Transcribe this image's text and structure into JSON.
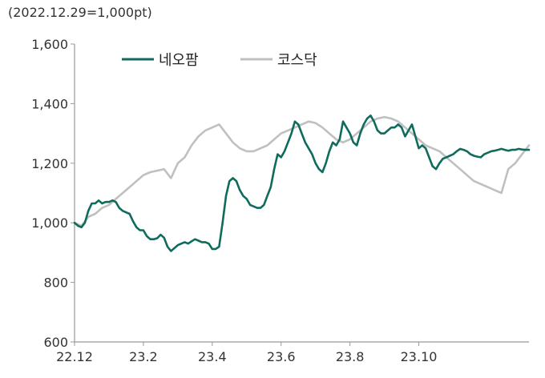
{
  "chart_data": {
    "type": "line",
    "title": "",
    "unit_note": "(2022.12.29=1,000pt)",
    "xlabel": "",
    "ylabel": "",
    "x_ticks": [
      "22.12",
      "23.2",
      "23.4",
      "23.6",
      "23.8",
      "23.10"
    ],
    "ylim": [
      600,
      1600
    ],
    "y_ticks": [
      600,
      800,
      1000,
      1200,
      1400,
      1600
    ],
    "y_tick_labels": [
      "600",
      "800",
      "1,000",
      "1,200",
      "1,400",
      "1,600"
    ],
    "grid": false,
    "legend_position": "top-left",
    "series": [
      {
        "name": "네오팜",
        "color": "#0f6b5c",
        "points": [
          [
            0.0,
            1000
          ],
          [
            0.05,
            990
          ],
          [
            0.1,
            985
          ],
          [
            0.15,
            1000
          ],
          [
            0.2,
            1040
          ],
          [
            0.25,
            1065
          ],
          [
            0.3,
            1065
          ],
          [
            0.35,
            1075
          ],
          [
            0.4,
            1065
          ],
          [
            0.45,
            1070
          ],
          [
            0.5,
            1070
          ],
          [
            0.55,
            1075
          ],
          [
            0.6,
            1070
          ],
          [
            0.65,
            1050
          ],
          [
            0.7,
            1040
          ],
          [
            0.75,
            1035
          ],
          [
            0.8,
            1030
          ],
          [
            0.85,
            1005
          ],
          [
            0.9,
            985
          ],
          [
            0.95,
            975
          ],
          [
            1.0,
            975
          ],
          [
            1.05,
            955
          ],
          [
            1.1,
            945
          ],
          [
            1.15,
            945
          ],
          [
            1.2,
            948
          ],
          [
            1.25,
            960
          ],
          [
            1.3,
            950
          ],
          [
            1.35,
            920
          ],
          [
            1.4,
            905
          ],
          [
            1.45,
            915
          ],
          [
            1.5,
            925
          ],
          [
            1.55,
            930
          ],
          [
            1.6,
            935
          ],
          [
            1.65,
            930
          ],
          [
            1.7,
            938
          ],
          [
            1.75,
            945
          ],
          [
            1.8,
            940
          ],
          [
            1.85,
            935
          ],
          [
            1.9,
            935
          ],
          [
            1.95,
            930
          ],
          [
            2.0,
            912
          ],
          [
            2.05,
            912
          ],
          [
            2.1,
            920
          ],
          [
            2.15,
            1000
          ],
          [
            2.2,
            1090
          ],
          [
            2.25,
            1140
          ],
          [
            2.3,
            1150
          ],
          [
            2.35,
            1140
          ],
          [
            2.4,
            1110
          ],
          [
            2.45,
            1090
          ],
          [
            2.5,
            1080
          ],
          [
            2.55,
            1060
          ],
          [
            2.6,
            1055
          ],
          [
            2.65,
            1050
          ],
          [
            2.7,
            1050
          ],
          [
            2.75,
            1060
          ],
          [
            2.8,
            1090
          ],
          [
            2.85,
            1120
          ],
          [
            2.9,
            1180
          ],
          [
            2.95,
            1230
          ],
          [
            3.0,
            1220
          ],
          [
            3.05,
            1240
          ],
          [
            3.1,
            1270
          ],
          [
            3.15,
            1300
          ],
          [
            3.2,
            1340
          ],
          [
            3.25,
            1330
          ],
          [
            3.3,
            1300
          ],
          [
            3.35,
            1270
          ],
          [
            3.4,
            1250
          ],
          [
            3.45,
            1230
          ],
          [
            3.5,
            1200
          ],
          [
            3.55,
            1180
          ],
          [
            3.6,
            1170
          ],
          [
            3.65,
            1200
          ],
          [
            3.7,
            1240
          ],
          [
            3.75,
            1270
          ],
          [
            3.8,
            1260
          ],
          [
            3.85,
            1280
          ],
          [
            3.9,
            1340
          ],
          [
            3.95,
            1320
          ],
          [
            4.0,
            1300
          ],
          [
            4.05,
            1270
          ],
          [
            4.1,
            1260
          ],
          [
            4.15,
            1300
          ],
          [
            4.2,
            1330
          ],
          [
            4.25,
            1350
          ],
          [
            4.3,
            1360
          ],
          [
            4.35,
            1340
          ],
          [
            4.4,
            1310
          ],
          [
            4.45,
            1300
          ],
          [
            4.5,
            1300
          ],
          [
            4.55,
            1310
          ],
          [
            4.6,
            1320
          ],
          [
            4.65,
            1320
          ],
          [
            4.7,
            1330
          ],
          [
            4.75,
            1320
          ],
          [
            4.8,
            1290
          ],
          [
            4.85,
            1310
          ],
          [
            4.9,
            1330
          ],
          [
            4.95,
            1290
          ],
          [
            5.0,
            1250
          ],
          [
            5.05,
            1260
          ],
          [
            5.1,
            1250
          ],
          [
            5.15,
            1220
          ],
          [
            5.2,
            1190
          ],
          [
            5.25,
            1180
          ],
          [
            5.3,
            1200
          ],
          [
            5.35,
            1215
          ],
          [
            5.4,
            1220
          ],
          [
            5.45,
            1225
          ],
          [
            5.5,
            1230
          ],
          [
            5.55,
            1240
          ],
          [
            5.6,
            1248
          ],
          [
            5.65,
            1245
          ],
          [
            5.7,
            1240
          ],
          [
            5.75,
            1230
          ],
          [
            5.8,
            1225
          ],
          [
            5.85,
            1222
          ],
          [
            5.9,
            1220
          ],
          [
            5.95,
            1230
          ],
          [
            6.0,
            1235
          ],
          [
            6.05,
            1240
          ],
          [
            6.1,
            1242
          ],
          [
            6.15,
            1245
          ],
          [
            6.2,
            1248
          ],
          [
            6.25,
            1245
          ],
          [
            6.3,
            1242
          ],
          [
            6.35,
            1245
          ],
          [
            6.4,
            1245
          ],
          [
            6.45,
            1248
          ],
          [
            6.5,
            1246
          ],
          [
            6.55,
            1245
          ],
          [
            6.6,
            1245
          ]
        ]
      },
      {
        "name": "코스닥",
        "color": "#c0c0c0",
        "points": [
          [
            0.0,
            1000
          ],
          [
            0.1,
            990
          ],
          [
            0.2,
            1020
          ],
          [
            0.3,
            1030
          ],
          [
            0.4,
            1050
          ],
          [
            0.5,
            1060
          ],
          [
            0.6,
            1080
          ],
          [
            0.7,
            1100
          ],
          [
            0.8,
            1120
          ],
          [
            0.9,
            1140
          ],
          [
            1.0,
            1160
          ],
          [
            1.1,
            1170
          ],
          [
            1.2,
            1175
          ],
          [
            1.3,
            1180
          ],
          [
            1.4,
            1150
          ],
          [
            1.5,
            1200
          ],
          [
            1.6,
            1220
          ],
          [
            1.7,
            1260
          ],
          [
            1.8,
            1290
          ],
          [
            1.9,
            1310
          ],
          [
            2.0,
            1320
          ],
          [
            2.1,
            1330
          ],
          [
            2.2,
            1300
          ],
          [
            2.3,
            1270
          ],
          [
            2.4,
            1250
          ],
          [
            2.5,
            1240
          ],
          [
            2.6,
            1240
          ],
          [
            2.7,
            1250
          ],
          [
            2.8,
            1260
          ],
          [
            2.9,
            1280
          ],
          [
            3.0,
            1300
          ],
          [
            3.1,
            1310
          ],
          [
            3.2,
            1320
          ],
          [
            3.3,
            1330
          ],
          [
            3.4,
            1340
          ],
          [
            3.5,
            1335
          ],
          [
            3.6,
            1320
          ],
          [
            3.7,
            1300
          ],
          [
            3.8,
            1280
          ],
          [
            3.9,
            1270
          ],
          [
            4.0,
            1280
          ],
          [
            4.1,
            1300
          ],
          [
            4.2,
            1320
          ],
          [
            4.3,
            1340
          ],
          [
            4.4,
            1350
          ],
          [
            4.5,
            1355
          ],
          [
            4.6,
            1350
          ],
          [
            4.7,
            1340
          ],
          [
            4.8,
            1320
          ],
          [
            4.9,
            1300
          ],
          [
            5.0,
            1280
          ],
          [
            5.1,
            1260
          ],
          [
            5.2,
            1250
          ],
          [
            5.3,
            1240
          ],
          [
            5.4,
            1220
          ],
          [
            5.5,
            1200
          ],
          [
            5.6,
            1180
          ],
          [
            5.7,
            1160
          ],
          [
            5.8,
            1140
          ],
          [
            5.9,
            1130
          ],
          [
            6.0,
            1120
          ],
          [
            6.1,
            1110
          ],
          [
            6.2,
            1100
          ],
          [
            6.3,
            1180
          ],
          [
            6.4,
            1200
          ],
          [
            6.5,
            1230
          ],
          [
            6.6,
            1260
          ]
        ]
      }
    ]
  }
}
